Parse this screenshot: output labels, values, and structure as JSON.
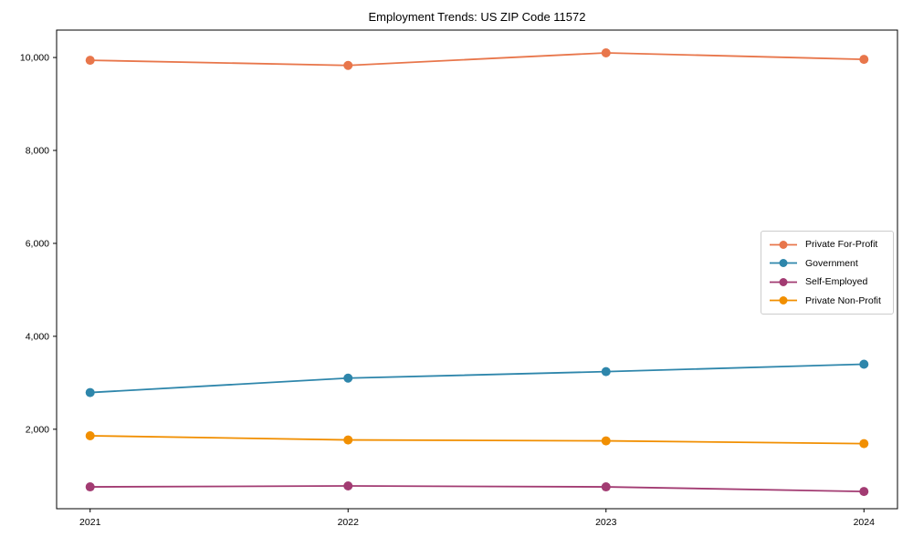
{
  "chart_data": {
    "type": "line",
    "title": "Employment Trends: US ZIP Code 11572",
    "x": [
      2021,
      2022,
      2023,
      2024
    ],
    "xtick_labels": [
      "2021",
      "2022",
      "2023",
      "2024"
    ],
    "yticks": [
      2000,
      4000,
      6000,
      8000,
      10000
    ],
    "ytick_labels": [
      "2,000",
      "4,000",
      "6,000",
      "8,000",
      "10,000"
    ],
    "xlim": [
      2020.87,
      2024.13
    ],
    "ylim": [
      290,
      10590
    ],
    "grid": false,
    "legend_position": "center-right",
    "series": [
      {
        "id": "private-for-profit",
        "name": "Private For-Profit",
        "color": "#E8764B",
        "values": [
          9940,
          9830,
          10100,
          9960
        ]
      },
      {
        "id": "government",
        "name": "Government",
        "color": "#2E86AB",
        "values": [
          2790,
          3100,
          3240,
          3400
        ]
      },
      {
        "id": "self-employed",
        "name": "Self-Employed",
        "color": "#A23B72",
        "values": [
          760,
          780,
          760,
          660
        ]
      },
      {
        "id": "private-non-profit",
        "name": "Private Non-Profit",
        "color": "#F18F01",
        "values": [
          1860,
          1770,
          1750,
          1690
        ]
      }
    ]
  }
}
